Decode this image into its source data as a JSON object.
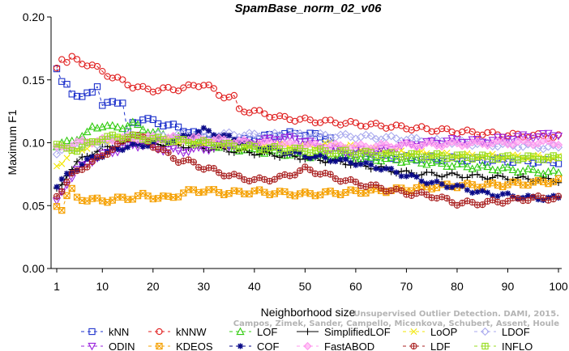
{
  "chart_data": {
    "type": "line",
    "title": "SpamBase_norm_02_v06",
    "xlabel": "Neighborhood size",
    "ylabel": "Maximum F1",
    "xlim": [
      1,
      100
    ],
    "ylim": [
      0,
      0.2
    ],
    "xticks": [
      1,
      10,
      20,
      30,
      40,
      50,
      60,
      70,
      80,
      90,
      100
    ],
    "xtick_labels": [
      "1",
      "10",
      "20",
      "30",
      "40",
      "50",
      "60",
      "70",
      "80",
      "90",
      "100"
    ],
    "yticks": [
      0,
      0.05,
      0.1,
      0.15,
      0.2
    ],
    "ytick_labels": [
      "0.00",
      "0.05",
      "0.10",
      "0.15",
      "0.20"
    ],
    "grid": false,
    "legend_position": "bottom",
    "watermark": [
      "Campos, Zimek, Sander, Campello, Micenkova, Schubert, Assent, Houle",
      "Unsupervised Outlier Detection. DAMI, 2015."
    ],
    "series": [
      {
        "name": "kNN",
        "color": "#1f33cc",
        "marker": "square",
        "dash": "4,4",
        "knots": [
          [
            1,
            0.157
          ],
          [
            2,
            0.148
          ],
          [
            3,
            0.148
          ],
          [
            4,
            0.14
          ],
          [
            5,
            0.136
          ],
          [
            6,
            0.135
          ],
          [
            7,
            0.14
          ],
          [
            8,
            0.142
          ],
          [
            9,
            0.145
          ],
          [
            10,
            0.128
          ],
          [
            11,
            0.131
          ],
          [
            12,
            0.134
          ],
          [
            13,
            0.133
          ],
          [
            14,
            0.131
          ],
          [
            15,
            0.107
          ],
          [
            16,
            0.116
          ],
          [
            18,
            0.119
          ],
          [
            20,
            0.117
          ],
          [
            25,
            0.112
          ],
          [
            30,
            0.105
          ],
          [
            35,
            0.1
          ],
          [
            40,
            0.103
          ],
          [
            45,
            0.107
          ],
          [
            50,
            0.107
          ],
          [
            55,
            0.104
          ],
          [
            56,
            0.094
          ],
          [
            60,
            0.09
          ],
          [
            70,
            0.088
          ],
          [
            80,
            0.087
          ],
          [
            90,
            0.086
          ],
          [
            100,
            0.085
          ]
        ]
      },
      {
        "name": "kNNW",
        "color": "#e01e1e",
        "marker": "circle",
        "dash": "4,4",
        "knots": [
          [
            1,
            0.16
          ],
          [
            2,
            0.168
          ],
          [
            3,
            0.164
          ],
          [
            4,
            0.167
          ],
          [
            6,
            0.164
          ],
          [
            8,
            0.161
          ],
          [
            10,
            0.157
          ],
          [
            12,
            0.152
          ],
          [
            14,
            0.149
          ],
          [
            16,
            0.145
          ],
          [
            18,
            0.143
          ],
          [
            20,
            0.142
          ],
          [
            25,
            0.143
          ],
          [
            28,
            0.145
          ],
          [
            30,
            0.147
          ],
          [
            31,
            0.145
          ],
          [
            33,
            0.138
          ],
          [
            36,
            0.136
          ],
          [
            37,
            0.126
          ],
          [
            40,
            0.125
          ],
          [
            45,
            0.12
          ],
          [
            50,
            0.118
          ],
          [
            60,
            0.115
          ],
          [
            70,
            0.112
          ],
          [
            80,
            0.109
          ],
          [
            90,
            0.106
          ],
          [
            100,
            0.105
          ]
        ]
      },
      {
        "name": "LOF",
        "color": "#33cc11",
        "marker": "triangle-up",
        "dash": "4,4",
        "knots": [
          [
            1,
            0.098
          ],
          [
            3,
            0.1
          ],
          [
            5,
            0.104
          ],
          [
            7,
            0.107
          ],
          [
            8,
            0.112
          ],
          [
            10,
            0.114
          ],
          [
            12,
            0.112
          ],
          [
            14,
            0.113
          ],
          [
            16,
            0.115
          ],
          [
            20,
            0.108
          ],
          [
            25,
            0.104
          ],
          [
            30,
            0.1
          ],
          [
            35,
            0.096
          ],
          [
            40,
            0.094
          ],
          [
            45,
            0.092
          ],
          [
            50,
            0.09
          ],
          [
            60,
            0.088
          ],
          [
            70,
            0.086
          ],
          [
            80,
            0.082
          ],
          [
            90,
            0.079
          ],
          [
            100,
            0.076
          ]
        ]
      },
      {
        "name": "SimplifiedLOF",
        "color": "#000000",
        "marker": "plus",
        "dash": "",
        "knots": [
          [
            1,
            0.062
          ],
          [
            2,
            0.066
          ],
          [
            3,
            0.075
          ],
          [
            4,
            0.08
          ],
          [
            5,
            0.084
          ],
          [
            6,
            0.087
          ],
          [
            8,
            0.092
          ],
          [
            10,
            0.095
          ],
          [
            12,
            0.097
          ],
          [
            15,
            0.1
          ],
          [
            20,
            0.1
          ],
          [
            25,
            0.098
          ],
          [
            30,
            0.096
          ],
          [
            40,
            0.092
          ],
          [
            50,
            0.088
          ],
          [
            60,
            0.083
          ],
          [
            70,
            0.076
          ],
          [
            80,
            0.074
          ],
          [
            90,
            0.072
          ],
          [
            100,
            0.07
          ]
        ]
      },
      {
        "name": "LoOP",
        "color": "#f2e600",
        "marker": "cross",
        "dash": "4,4",
        "knots": [
          [
            1,
            0.082
          ],
          [
            3,
            0.088
          ],
          [
            5,
            0.094
          ],
          [
            8,
            0.098
          ],
          [
            10,
            0.101
          ],
          [
            15,
            0.104
          ],
          [
            20,
            0.103
          ],
          [
            30,
            0.1
          ],
          [
            40,
            0.098
          ],
          [
            50,
            0.097
          ],
          [
            55,
            0.099
          ],
          [
            60,
            0.096
          ],
          [
            70,
            0.092
          ],
          [
            80,
            0.09
          ],
          [
            90,
            0.089
          ],
          [
            100,
            0.088
          ]
        ]
      },
      {
        "name": "LDOF",
        "color": "#aaaaee",
        "marker": "diamond",
        "dash": "4,4",
        "knots": [
          [
            1,
            0.092
          ],
          [
            5,
            0.097
          ],
          [
            10,
            0.1
          ],
          [
            15,
            0.103
          ],
          [
            20,
            0.105
          ],
          [
            30,
            0.107
          ],
          [
            40,
            0.106
          ],
          [
            50,
            0.106
          ],
          [
            60,
            0.105
          ],
          [
            70,
            0.103
          ],
          [
            80,
            0.1
          ],
          [
            90,
            0.098
          ],
          [
            100,
            0.096
          ]
        ]
      },
      {
        "name": "ODIN",
        "color": "#9922dd",
        "marker": "triangle-down",
        "dash": "4,4",
        "knots": [
          [
            1,
            0.052
          ],
          [
            3,
            0.068
          ],
          [
            5,
            0.078
          ],
          [
            8,
            0.086
          ],
          [
            10,
            0.09
          ],
          [
            12,
            0.093
          ],
          [
            14,
            0.095
          ],
          [
            16,
            0.098
          ],
          [
            18,
            0.098
          ],
          [
            20,
            0.096
          ],
          [
            25,
            0.093
          ],
          [
            30,
            0.095
          ],
          [
            35,
            0.098
          ],
          [
            40,
            0.1
          ],
          [
            45,
            0.104
          ],
          [
            50,
            0.102
          ],
          [
            52,
            0.098
          ],
          [
            55,
            0.094
          ],
          [
            60,
            0.093
          ],
          [
            65,
            0.094
          ],
          [
            70,
            0.098
          ],
          [
            75,
            0.1
          ],
          [
            80,
            0.102
          ],
          [
            85,
            0.101
          ],
          [
            90,
            0.104
          ],
          [
            95,
            0.105
          ],
          [
            100,
            0.107
          ]
        ]
      },
      {
        "name": "KDEOS",
        "color": "#f5a000",
        "marker": "square-x",
        "dash": "4,4",
        "knots": [
          [
            1,
            0.05
          ],
          [
            2,
            0.048
          ],
          [
            3,
            0.058
          ],
          [
            4,
            0.062
          ],
          [
            5,
            0.056
          ],
          [
            7,
            0.055
          ],
          [
            10,
            0.054
          ],
          [
            15,
            0.056
          ],
          [
            18,
            0.058
          ],
          [
            20,
            0.057
          ],
          [
            23,
            0.056
          ],
          [
            26,
            0.06
          ],
          [
            28,
            0.062
          ],
          [
            30,
            0.062
          ],
          [
            35,
            0.06
          ],
          [
            40,
            0.061
          ],
          [
            45,
            0.06
          ],
          [
            50,
            0.059
          ],
          [
            55,
            0.06
          ],
          [
            60,
            0.061
          ],
          [
            65,
            0.062
          ],
          [
            70,
            0.063
          ],
          [
            75,
            0.065
          ],
          [
            80,
            0.066
          ],
          [
            85,
            0.066
          ],
          [
            90,
            0.067
          ],
          [
            95,
            0.068
          ],
          [
            100,
            0.07
          ]
        ]
      },
      {
        "name": "COF",
        "color": "#0a0a88",
        "marker": "asterisk",
        "dash": "4,4",
        "knots": [
          [
            1,
            0.066
          ],
          [
            3,
            0.074
          ],
          [
            5,
            0.08
          ],
          [
            8,
            0.088
          ],
          [
            10,
            0.09
          ],
          [
            12,
            0.094
          ],
          [
            15,
            0.097
          ],
          [
            18,
            0.098
          ],
          [
            20,
            0.1
          ],
          [
            25,
            0.103
          ],
          [
            30,
            0.11
          ],
          [
            35,
            0.104
          ],
          [
            40,
            0.098
          ],
          [
            45,
            0.094
          ],
          [
            50,
            0.09
          ],
          [
            55,
            0.087
          ],
          [
            60,
            0.084
          ],
          [
            65,
            0.08
          ],
          [
            70,
            0.074
          ],
          [
            75,
            0.068
          ],
          [
            80,
            0.065
          ],
          [
            85,
            0.06
          ],
          [
            90,
            0.058
          ],
          [
            95,
            0.056
          ],
          [
            100,
            0.056
          ]
        ]
      },
      {
        "name": "FastABOD",
        "color": "#ff99ee",
        "marker": "diamond-filled",
        "dash": "4,4",
        "knots": [
          [
            1,
            0.095
          ],
          [
            5,
            0.1
          ],
          [
            10,
            0.102
          ],
          [
            15,
            0.104
          ],
          [
            20,
            0.104
          ],
          [
            30,
            0.103
          ],
          [
            40,
            0.1
          ],
          [
            50,
            0.098
          ],
          [
            60,
            0.097
          ],
          [
            70,
            0.098
          ],
          [
            80,
            0.099
          ],
          [
            90,
            0.1
          ],
          [
            100,
            0.1
          ]
        ]
      },
      {
        "name": "LDF",
        "color": "#aa2222",
        "marker": "circle-plus",
        "dash": "4,4",
        "knots": [
          [
            1,
            0.058
          ],
          [
            2,
            0.063
          ],
          [
            4,
            0.074
          ],
          [
            6,
            0.08
          ],
          [
            8,
            0.084
          ],
          [
            10,
            0.09
          ],
          [
            12,
            0.095
          ],
          [
            14,
            0.1
          ],
          [
            16,
            0.108
          ],
          [
            18,
            0.103
          ],
          [
            20,
            0.098
          ],
          [
            22,
            0.093
          ],
          [
            25,
            0.086
          ],
          [
            28,
            0.084
          ],
          [
            30,
            0.08
          ],
          [
            32,
            0.078
          ],
          [
            35,
            0.074
          ],
          [
            38,
            0.072
          ],
          [
            40,
            0.07
          ],
          [
            45,
            0.072
          ],
          [
            48,
            0.076
          ],
          [
            50,
            0.079
          ],
          [
            53,
            0.076
          ],
          [
            56,
            0.072
          ],
          [
            60,
            0.068
          ],
          [
            65,
            0.064
          ],
          [
            70,
            0.06
          ],
          [
            75,
            0.058
          ],
          [
            80,
            0.052
          ],
          [
            85,
            0.052
          ],
          [
            90,
            0.054
          ],
          [
            95,
            0.056
          ],
          [
            100,
            0.056
          ]
        ]
      },
      {
        "name": "INFLO",
        "color": "#99dd22",
        "marker": "square-cross",
        "dash": "4,4",
        "knots": [
          [
            1,
            0.1
          ],
          [
            3,
            0.094
          ],
          [
            5,
            0.095
          ],
          [
            8,
            0.1
          ],
          [
            10,
            0.104
          ],
          [
            15,
            0.105
          ],
          [
            20,
            0.103
          ],
          [
            30,
            0.1
          ],
          [
            40,
            0.096
          ],
          [
            50,
            0.094
          ],
          [
            60,
            0.092
          ],
          [
            70,
            0.09
          ],
          [
            80,
            0.089
          ],
          [
            90,
            0.088
          ],
          [
            100,
            0.088
          ]
        ]
      }
    ]
  }
}
